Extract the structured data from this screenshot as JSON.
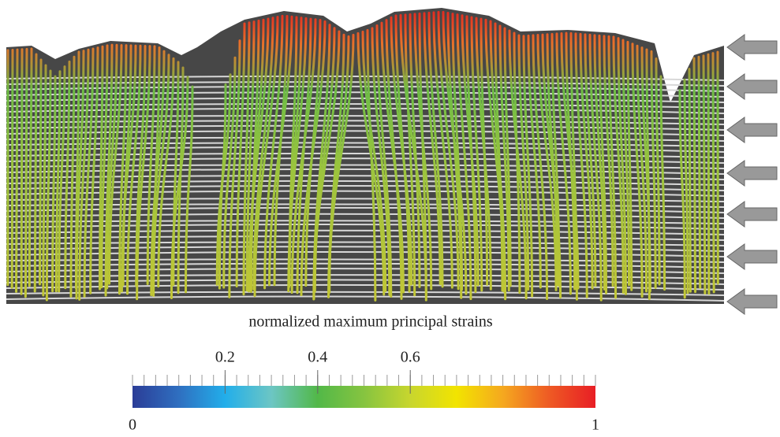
{
  "figure": {
    "colorbar": {
      "label": "normalized maximum principal strains",
      "lim": [
        0,
        1
      ],
      "ticks": [
        0.2,
        0.4,
        0.6
      ],
      "colormap": [
        "#2b3d97",
        "#2f6fc0",
        "#22aeea",
        "#6cc6c4",
        "#52b848",
        "#86c440",
        "#c8d62e",
        "#f2e400",
        "#f5a81f",
        "#ee5a24",
        "#e81e25"
      ]
    }
  }
}
